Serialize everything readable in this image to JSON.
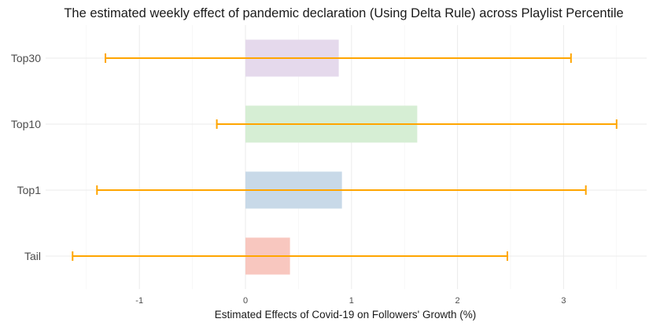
{
  "chart_data": {
    "type": "bar",
    "orientation": "horizontal",
    "title": "The estimated weekly effect of pandemic declaration (Using Delta Rule) across Playlist Percentile",
    "xlabel": "Estimated Effects of Covid-19 on Followers' Growth (%)",
    "ylabel": "",
    "categories": [
      "Tail",
      "Top1",
      "Top10",
      "Top30"
    ],
    "values": [
      0.42,
      0.91,
      1.62,
      0.88
    ],
    "error_low": [
      -1.63,
      -1.4,
      -0.27,
      -1.32
    ],
    "error_high": [
      2.47,
      3.21,
      3.5,
      3.07
    ],
    "xlim": [
      -1.82,
      3.6
    ],
    "xticks": [
      -1,
      0,
      1,
      2,
      3
    ],
    "xtick_labels": [
      "-1",
      "0",
      "1",
      "2",
      "3"
    ],
    "grid": true,
    "legend": "none",
    "bar_colors": [
      "#f8c7bf",
      "#c8d9e8",
      "#d6eed4",
      "#e5d9ec"
    ],
    "errorbar_color": "#ffa500"
  }
}
